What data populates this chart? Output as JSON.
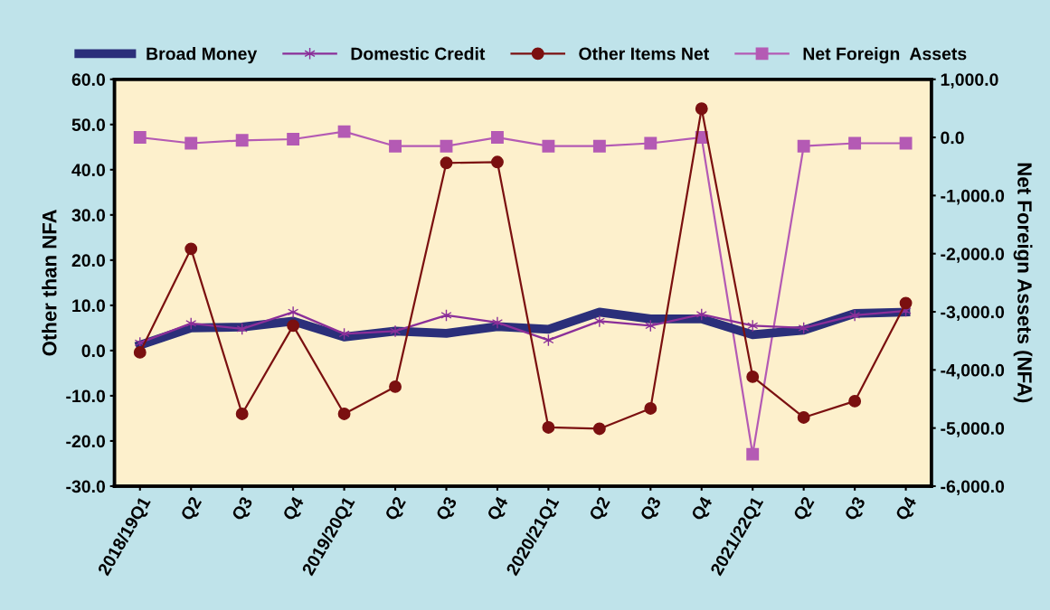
{
  "chart_data": {
    "type": "line",
    "categories": [
      "2018/19Q1",
      "Q2",
      "Q3",
      "Q4",
      "2019/20Q1",
      "Q2",
      "Q3",
      "Q4",
      "2020/21Q1",
      "Q2",
      "Q3",
      "Q4",
      "2021/22Q1",
      "Q2",
      "Q3",
      "Q4"
    ],
    "ylabel": "Other than NFA",
    "y2label": "Net Foreign Assets (NFA)",
    "ylim": [
      -30,
      60
    ],
    "yticks": [
      {
        "value": -30,
        "label": "-30.0"
      },
      {
        "value": -20,
        "label": "-20.0"
      },
      {
        "value": -10,
        "label": "-10.0"
      },
      {
        "value": 0,
        "label": "0.0"
      },
      {
        "value": 10,
        "label": "10.0"
      },
      {
        "value": 20,
        "label": "20.0"
      },
      {
        "value": 30,
        "label": "30.0"
      },
      {
        "value": 40,
        "label": "40.0"
      },
      {
        "value": 50,
        "label": "50.0"
      },
      {
        "value": 60,
        "label": "60.0"
      }
    ],
    "y2lim": [
      -6000,
      1000
    ],
    "y2ticks": [
      {
        "value": -6000,
        "label": "-6,000.0"
      },
      {
        "value": -5000,
        "label": "-5,000.0"
      },
      {
        "value": -4000,
        "label": "-4,000.0"
      },
      {
        "value": -3000,
        "label": "-3,000.0"
      },
      {
        "value": -2000,
        "label": "-2,000.0"
      },
      {
        "value": -1000,
        "label": "-1,000.0"
      },
      {
        "value": 0,
        "label": "0.0"
      },
      {
        "value": 1000,
        "label": "1,000.0"
      }
    ],
    "grid": false,
    "legend": "top",
    "series": [
      {
        "name": "Broad Money",
        "color": "#2b2f7a",
        "marker": "none",
        "values": [
          1.2,
          5,
          5.2,
          6.5,
          3,
          4.3,
          3.8,
          5.3,
          4.7,
          8.5,
          7,
          7,
          3.5,
          4.5,
          8.2,
          8.5
        ]
      },
      {
        "name": "Domestic Credit",
        "color": "#8b2f99",
        "marker": "cross",
        "values": [
          1.7,
          6,
          4.8,
          8.5,
          3.7,
          4.3,
          7.8,
          6.2,
          2.3,
          6.5,
          5.5,
          8,
          5.5,
          5,
          7.8,
          8.8
        ]
      },
      {
        "name": "Other Items Net",
        "color": "#7b1010",
        "marker": "circle",
        "values": [
          -0.4,
          22.5,
          -14,
          5.5,
          -14,
          -8,
          41.5,
          41.7,
          -17,
          -17.3,
          -12.8,
          53.5,
          -5.8,
          -14.8,
          -11.2,
          10.5
        ]
      },
      {
        "name": "Net Foreign  Assets",
        "color": "#b45ab4",
        "marker": "square",
        "axis": "y2",
        "values": [
          0,
          -100,
          -50,
          -30,
          100,
          -150,
          -150,
          0,
          -150,
          -150,
          -100,
          0,
          -5450,
          -150,
          -100,
          -100
        ]
      }
    ]
  }
}
